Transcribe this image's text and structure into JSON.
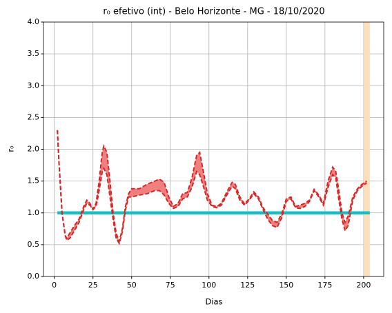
{
  "chart_data": {
    "type": "line",
    "title": "r₀ efetivo (int) - Belo Horizonte - MG - 18/10/2020",
    "xlabel": "Dias",
    "ylabel": "r₀",
    "x": [
      2,
      3,
      5,
      7,
      8,
      10,
      13,
      16,
      19,
      21,
      23,
      25,
      27,
      29,
      31,
      32,
      34,
      36,
      38,
      40,
      42,
      44,
      46,
      48,
      50,
      55,
      60,
      65,
      68,
      71,
      74,
      77,
      80,
      83,
      86,
      89,
      92,
      94,
      96,
      99,
      102,
      105,
      108,
      112,
      115,
      117,
      120,
      123,
      126,
      129,
      132,
      135,
      138,
      141,
      144,
      147,
      150,
      153,
      156,
      159,
      162,
      165,
      168,
      171,
      174,
      177,
      180,
      182,
      184,
      186,
      188,
      190,
      193,
      196,
      199,
      202
    ],
    "series": [
      {
        "color": "#d62728",
        "values": [
          2.3,
          1.8,
          1.0,
          0.65,
          0.6,
          0.68,
          0.8,
          0.9,
          1.1,
          1.2,
          1.15,
          1.06,
          1.15,
          1.5,
          1.95,
          2.05,
          1.95,
          1.5,
          1.0,
          0.68,
          0.55,
          0.75,
          1.1,
          1.3,
          1.38,
          1.38,
          1.45,
          1.5,
          1.53,
          1.48,
          1.25,
          1.1,
          1.15,
          1.3,
          1.32,
          1.55,
          1.9,
          1.95,
          1.7,
          1.3,
          1.12,
          1.1,
          1.15,
          1.35,
          1.48,
          1.45,
          1.25,
          1.14,
          1.22,
          1.33,
          1.25,
          1.08,
          0.98,
          0.88,
          0.85,
          0.98,
          1.22,
          1.25,
          1.1,
          1.12,
          1.15,
          1.2,
          1.37,
          1.28,
          1.15,
          1.5,
          1.72,
          1.65,
          1.35,
          1.0,
          0.85,
          0.95,
          1.25,
          1.38,
          1.45,
          1.5
        ]
      },
      {
        "color": "#d62728",
        "values": [
          2.3,
          1.8,
          1.0,
          0.65,
          0.57,
          0.6,
          0.72,
          0.85,
          1.05,
          1.15,
          1.12,
          1.05,
          1.1,
          1.35,
          1.65,
          1.7,
          1.6,
          1.25,
          0.9,
          0.6,
          0.52,
          0.7,
          1.05,
          1.25,
          1.25,
          1.28,
          1.3,
          1.35,
          1.35,
          1.28,
          1.15,
          1.07,
          1.1,
          1.22,
          1.25,
          1.4,
          1.65,
          1.6,
          1.45,
          1.2,
          1.1,
          1.08,
          1.12,
          1.3,
          1.42,
          1.38,
          1.2,
          1.12,
          1.2,
          1.3,
          1.22,
          1.05,
          0.9,
          0.8,
          0.77,
          0.92,
          1.18,
          1.22,
          1.08,
          1.07,
          1.1,
          1.18,
          1.35,
          1.25,
          1.12,
          1.4,
          1.6,
          1.55,
          1.2,
          0.9,
          0.72,
          0.8,
          1.2,
          1.35,
          1.42,
          1.47
        ]
      }
    ],
    "fill_between": true,
    "fill_color": "#f08080",
    "reference": {
      "x": [
        2,
        204
      ],
      "values": [
        1,
        1
      ],
      "color": "#17bebe"
    },
    "vspan": {
      "range": [
        200,
        204
      ],
      "color": "#ffdfb8"
    },
    "xlim": [
      -7,
      213
    ],
    "ylim": [
      0,
      4
    ],
    "xticks": [
      0,
      25,
      50,
      75,
      100,
      125,
      150,
      175,
      200
    ],
    "yticks": [
      {
        "value": 0,
        "label": "0.0"
      },
      0.5,
      {
        "value": 1,
        "label": "1.0"
      },
      1.5,
      {
        "value": 2,
        "label": "2.0"
      },
      2.5,
      {
        "value": 3,
        "label": "3.0"
      },
      3.5,
      {
        "value": 4,
        "label": "4.0"
      }
    ],
    "grid": true
  }
}
